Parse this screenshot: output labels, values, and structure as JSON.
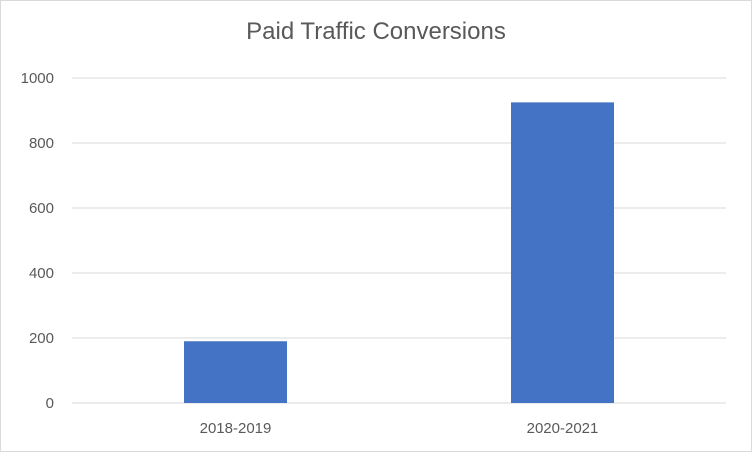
{
  "chart_data": {
    "type": "bar",
    "title": "Paid Traffic Conversions",
    "categories": [
      "2018-2019",
      "2020-2021"
    ],
    "values": [
      190,
      925
    ],
    "ylim": [
      0,
      1000
    ],
    "yticks": [
      0,
      200,
      400,
      600,
      800,
      1000
    ],
    "xlabel": "",
    "ylabel": "",
    "grid": true,
    "legend": "none",
    "bar_color": "#4472c4",
    "grid_color": "#d9d9d9"
  }
}
